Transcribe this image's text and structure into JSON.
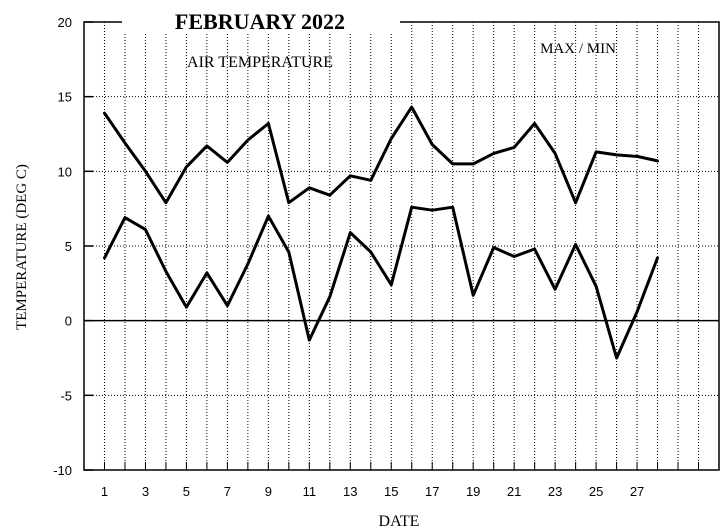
{
  "chart_data": {
    "type": "line",
    "title": "FEBRUARY 2022",
    "subtitle": "AIR TEMPERATURE",
    "legend_note": "MAX / MIN",
    "xlabel": "DATE",
    "ylabel": "TEMPERATURE (DEG C)",
    "xlim": [
      0,
      31
    ],
    "ylim": [
      -10,
      20
    ],
    "x_tick_labels": [
      "1",
      "3",
      "5",
      "7",
      "9",
      "11",
      "13",
      "15",
      "17",
      "19",
      "21",
      "23",
      "25",
      "27"
    ],
    "y_tick_labels": [
      "20",
      "15",
      "10",
      "5",
      "0",
      "-5",
      "-10"
    ],
    "grid": true,
    "zero_line": true,
    "x": [
      1,
      2,
      3,
      4,
      5,
      6,
      7,
      8,
      9,
      10,
      11,
      12,
      13,
      14,
      15,
      16,
      17,
      18,
      19,
      20,
      21,
      22,
      23,
      24,
      25,
      26,
      27,
      28
    ],
    "series": [
      {
        "values": [
          13.9,
          11.9,
          10.0,
          7.9,
          10.3,
          11.7,
          10.6,
          12.1,
          13.2,
          7.9,
          8.9,
          8.4,
          9.7,
          9.4,
          12.2,
          14.3,
          11.8,
          10.5,
          10.5,
          11.2,
          11.6,
          13.2,
          11.2,
          7.9,
          11.3,
          11.1,
          11.0,
          10.7
        ]
      },
      {
        "values": [
          4.2,
          6.9,
          6.1,
          3.3,
          0.9,
          3.2,
          1.0,
          3.8,
          7.0,
          4.6,
          -1.3,
          1.6,
          5.9,
          4.6,
          2.4,
          7.6,
          7.4,
          7.6,
          1.7,
          4.9,
          4.3,
          4.8,
          2.1,
          5.1,
          2.3,
          -2.5,
          0.6,
          4.2
        ]
      }
    ]
  }
}
